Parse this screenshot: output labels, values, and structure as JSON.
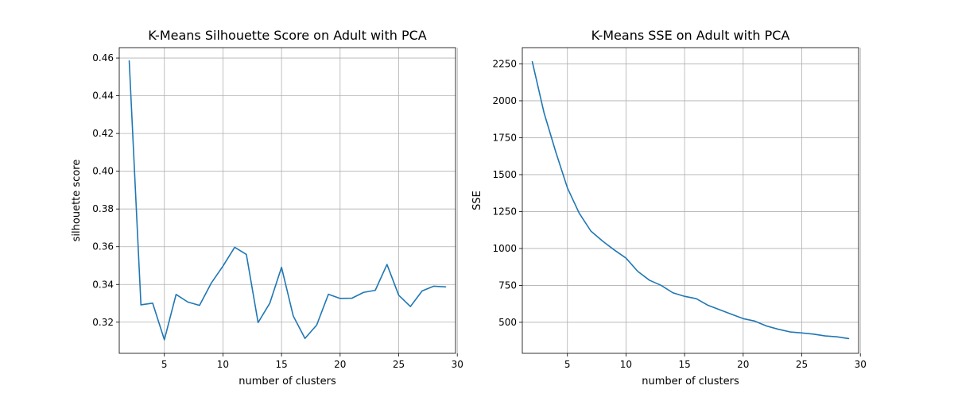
{
  "chart_data": [
    {
      "type": "line",
      "title": "K-Means Silhouette Score on Adult with PCA",
      "xlabel": "number of clusters",
      "ylabel": "silhouette score",
      "xlim": [
        1.15,
        29.85
      ],
      "ylim": [
        0.3035,
        0.4655
      ],
      "xticks": [
        5,
        10,
        15,
        20,
        25,
        30
      ],
      "yticks": [
        0.32,
        0.34,
        0.36,
        0.38,
        0.4,
        0.42,
        0.44,
        0.46
      ],
      "ytick_decimals": 2,
      "grid": true,
      "color": "#1f77b4",
      "x": [
        2,
        3,
        4,
        5,
        6,
        7,
        8,
        9,
        10,
        11,
        12,
        13,
        14,
        15,
        16,
        17,
        18,
        19,
        20,
        21,
        22,
        23,
        24,
        25,
        26,
        27,
        28,
        29
      ],
      "y": [
        0.4585,
        0.3292,
        0.3301,
        0.3107,
        0.3347,
        0.3307,
        0.3289,
        0.3407,
        0.3497,
        0.3597,
        0.3559,
        0.3198,
        0.3301,
        0.3491,
        0.3233,
        0.3114,
        0.3185,
        0.3348,
        0.3326,
        0.3327,
        0.3358,
        0.3369,
        0.3506,
        0.3343,
        0.3283,
        0.3366,
        0.3391,
        0.3387
      ]
    },
    {
      "type": "line",
      "title": "K-Means SSE on Adult with PCA",
      "xlabel": "number of clusters",
      "ylabel": "SSE",
      "xlim": [
        1.15,
        29.85
      ],
      "ylim": [
        290,
        2360
      ],
      "xticks": [
        5,
        10,
        15,
        20,
        25,
        30
      ],
      "yticks": [
        500,
        750,
        1000,
        1250,
        1500,
        1750,
        2000,
        2250
      ],
      "ytick_decimals": 0,
      "grid": true,
      "color": "#1f77b4",
      "x": [
        2,
        3,
        4,
        5,
        6,
        7,
        8,
        9,
        10,
        11,
        12,
        13,
        14,
        15,
        16,
        17,
        18,
        19,
        20,
        21,
        22,
        23,
        24,
        25,
        26,
        27,
        28,
        29
      ],
      "y": [
        2265,
        1920,
        1655,
        1410,
        1240,
        1118,
        1050,
        990,
        935,
        845,
        785,
        750,
        700,
        676,
        660,
        615,
        585,
        555,
        525,
        508,
        475,
        453,
        435,
        428,
        420,
        408,
        402,
        390
      ]
    }
  ]
}
